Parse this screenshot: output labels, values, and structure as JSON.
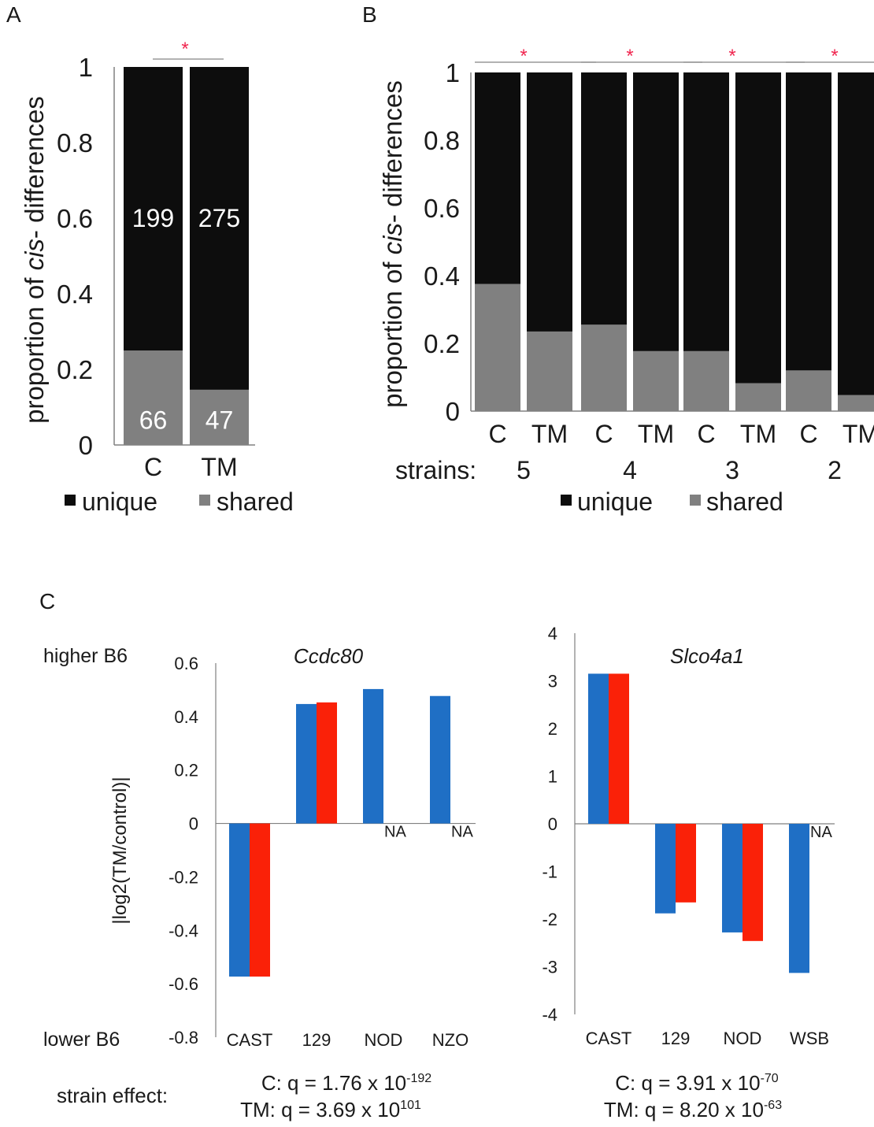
{
  "panel_labels": {
    "a": "A",
    "b": "B",
    "c": "C"
  },
  "colors": {
    "unique": "#0d0d0d",
    "shared": "#808080",
    "c_series": "#1f6fc5",
    "tm_series": "#fa2108",
    "star": "#f0264f",
    "axis": "#808080"
  },
  "panel_a": {
    "ylabel_pre": "proportion of ",
    "ylabel_italic": "cis",
    "ylabel_post": "- differences",
    "star": "*",
    "legend": {
      "unique": "unique",
      "shared": "shared"
    }
  },
  "panel_b": {
    "ylabel_pre": "proportion of ",
    "ylabel_italic": "cis",
    "ylabel_post": "- differences",
    "strains_label": "strains:",
    "legend": {
      "unique": "unique",
      "shared": "shared"
    }
  },
  "panel_c": {
    "ylabel": "|log2(TM/control)|",
    "higher_label": "higher B6",
    "lower_label": "lower B6",
    "strain_effect_label": "strain effect:"
  },
  "chart_data": [
    {
      "type": "bar",
      "stacked": true,
      "categories": [
        "C",
        "TM"
      ],
      "series": [
        {
          "name": "shared",
          "values": [
            0.25,
            0.146
          ],
          "labels": [
            "66",
            "47"
          ]
        },
        {
          "name": "unique",
          "values": [
            0.75,
            0.854
          ],
          "labels": [
            "199",
            "275"
          ]
        }
      ],
      "ylim": [
        0,
        1
      ],
      "yticks": [
        "0",
        "0.2",
        "0.4",
        "0.6",
        "0.8",
        "1"
      ],
      "annotations": [
        "*"
      ]
    },
    {
      "type": "bar",
      "stacked": true,
      "groups": [
        "5",
        "4",
        "3",
        "2"
      ],
      "categories": [
        "C",
        "TM"
      ],
      "series": [
        {
          "name": "shared",
          "values": [
            [
              0.375,
              0.235
            ],
            [
              0.255,
              0.177
            ],
            [
              0.177,
              0.082
            ],
            [
              0.12,
              0.047
            ]
          ]
        },
        {
          "name": "unique",
          "values": [
            [
              0.625,
              0.765
            ],
            [
              0.745,
              0.823
            ],
            [
              0.823,
              0.918
            ],
            [
              0.88,
              0.953
            ]
          ]
        }
      ],
      "ylim": [
        0,
        1
      ],
      "yticks": [
        "0",
        "0.2",
        "0.4",
        "0.6",
        "0.8",
        "1"
      ],
      "annotations": [
        "*",
        "*",
        "*",
        "*"
      ]
    },
    {
      "type": "bar",
      "title": "Ccdc80",
      "categories": [
        "CAST",
        "129",
        "NOD",
        "NZO"
      ],
      "series": [
        {
          "name": "C",
          "values": [
            -0.573,
            0.447,
            0.503,
            0.477
          ]
        },
        {
          "name": "TM",
          "values": [
            -0.573,
            0.453,
            null,
            null
          ]
        }
      ],
      "missing_label": "NA",
      "ylim": [
        -0.8,
        0.6
      ],
      "yticks": [
        "-0.8",
        "-0.6",
        "-0.4",
        "-0.2",
        "0",
        "0.2",
        "0.4",
        "0.6"
      ],
      "stats": {
        "c_prefix": "C:  q = 1.76 x 10",
        "c_exp": "-192",
        "tm_prefix": "TM:  q = 3.69 x 10",
        "tm_exp": "101"
      }
    },
    {
      "type": "bar",
      "title": "Slco4a1",
      "categories": [
        "CAST",
        "129",
        "NOD",
        "WSB"
      ],
      "series": [
        {
          "name": "C",
          "values": [
            3.15,
            -1.88,
            -2.28,
            -3.13
          ]
        },
        {
          "name": "TM",
          "values": [
            3.15,
            -1.65,
            -2.46,
            null
          ]
        }
      ],
      "missing_label": "NA",
      "ylim": [
        -4,
        4
      ],
      "yticks": [
        "-4",
        "-3",
        "-2",
        "-1",
        "0",
        "1",
        "2",
        "3",
        "4"
      ],
      "stats": {
        "c_prefix": "C:  q = 3.91 x 10",
        "c_exp": "-70",
        "tm_prefix": "TM:  q = 8.20 x 10",
        "tm_exp": "-63"
      }
    }
  ]
}
